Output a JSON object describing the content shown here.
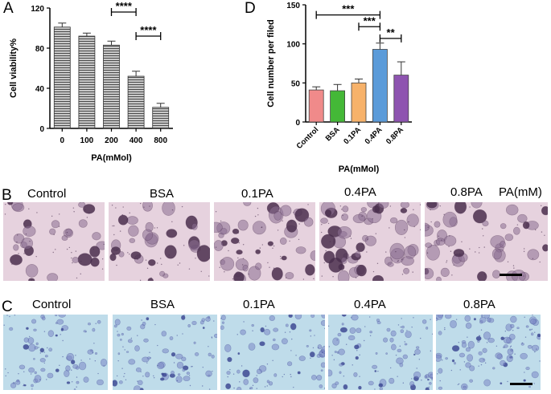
{
  "panel_labels": {
    "a": "A",
    "b": "B",
    "c": "C",
    "d": "D"
  },
  "chart_data": [
    {
      "type": "bar",
      "categories": [
        "0",
        "100",
        "200",
        "400",
        "800"
      ],
      "values": [
        101,
        92,
        83,
        52,
        21
      ],
      "errors": [
        4,
        3,
        4,
        5,
        4
      ],
      "xlabel": "PA(mMol)",
      "ylabel": "Cell viability%",
      "ylim": [
        0,
        120
      ],
      "yticks": [
        "0",
        "40",
        "80",
        "120"
      ],
      "significance": [
        {
          "from": "200",
          "to": "400",
          "label": "****"
        },
        {
          "from": "400",
          "to": "800",
          "label": "****"
        }
      ],
      "bar_fill": "hatched-horizontal-gray"
    },
    {
      "type": "bar",
      "categories": [
        "Control",
        "BSA",
        "0.1PA",
        "0.4PA",
        "0.8PA"
      ],
      "values": [
        41,
        40,
        50,
        93,
        60
      ],
      "errors": [
        4,
        8,
        5,
        8,
        17
      ],
      "colors": [
        "#f08a8a",
        "#44b837",
        "#f7b26a",
        "#5b9bd9",
        "#8e54b0"
      ],
      "xlabel": "PA(mMol)",
      "ylabel": "Cell number per filed",
      "ylim": [
        0,
        150
      ],
      "yticks": [
        "0",
        "50",
        "100",
        "150"
      ],
      "significance": [
        {
          "from": "Control",
          "to": "0.4PA",
          "label": "***"
        },
        {
          "from": "0.1PA",
          "to": "0.4PA",
          "label": "***"
        },
        {
          "from": "0.4PA",
          "to": "0.8PA",
          "label": "**"
        }
      ]
    }
  ],
  "row_b": {
    "titles": [
      "Control",
      "BSA",
      "0.1PA",
      "0.4PA",
      "0.8PA"
    ],
    "unit": "PA(mM)",
    "bg": "#e6d2de",
    "cell_color": "#8a6d92",
    "dark_color": "#4a2f4e"
  },
  "row_c": {
    "titles": [
      "Control",
      "BSA",
      "0.1PA",
      "0.4PA",
      "0.8PA"
    ],
    "bg": "#bfdcea",
    "cell_color": "#7a86c4",
    "dark_color": "#3e4a94"
  }
}
